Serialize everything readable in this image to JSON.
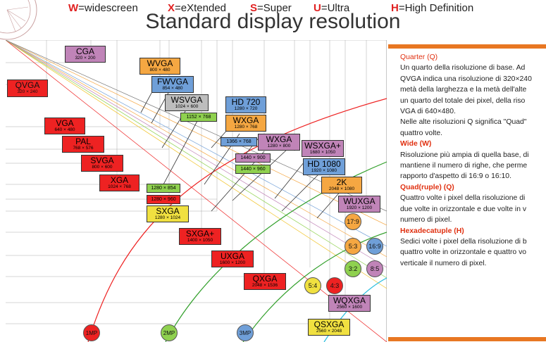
{
  "legend": [
    {
      "letter": "W",
      "text": "=widescreen",
      "color": "#e02020"
    },
    {
      "letter": "X",
      "text": "=eXtended",
      "color": "#e02020"
    },
    {
      "letter": "S",
      "text": "=Super",
      "color": "#e02020"
    },
    {
      "letter": "U",
      "text": "=Ultra",
      "color": "#e02020"
    },
    {
      "letter": "H",
      "text": "=High Definition",
      "color": "#e02020"
    }
  ],
  "title": "Standard display resolution",
  "resolutions": [
    {
      "name": "CGA",
      "res": "320 × 200",
      "color": "#c084b8"
    },
    {
      "name": "QVGA",
      "res": "320 × 240",
      "color": "#ee2222"
    },
    {
      "name": "WVGA",
      "res": "800 × 480",
      "color": "#f5a742"
    },
    {
      "name": "FWVGA",
      "res": "854 × 480",
      "color": "#6f9fd8"
    },
    {
      "name": "WSVGA",
      "res": "1024 × 600",
      "color": "#bdbdbd"
    },
    {
      "name": "1152 × 768",
      "res": "",
      "color": "#8fd14f"
    },
    {
      "name": "HD 720",
      "res": "1280 × 720",
      "color": "#6f9fd8"
    },
    {
      "name": "WXGA",
      "res": "1280 × 768",
      "color": "#f5a742"
    },
    {
      "name": "VGA",
      "res": "640 × 480",
      "color": "#ee2222"
    },
    {
      "name": "PAL",
      "res": "768 × 576",
      "color": "#ee2222"
    },
    {
      "name": "1366 × 768",
      "res": "",
      "color": "#6f9fd8"
    },
    {
      "name": "WXGA",
      "res": "1280 × 800",
      "color": "#c084b8"
    },
    {
      "name": "WSXGA+",
      "res": "1680 × 1050",
      "color": "#c084b8"
    },
    {
      "name": "1440 × 900",
      "res": "",
      "color": "#c084b8"
    },
    {
      "name": "SVGA",
      "res": "800 × 600",
      "color": "#ee2222"
    },
    {
      "name": "1440 × 960",
      "res": "",
      "color": "#8fd14f"
    },
    {
      "name": "HD 1080",
      "res": "1920 × 1080",
      "color": "#6f9fd8"
    },
    {
      "name": "XGA",
      "res": "1024 × 768",
      "color": "#ee2222"
    },
    {
      "name": "1280 × 854",
      "res": "",
      "color": "#8fd14f"
    },
    {
      "name": "2K",
      "res": "2048 × 1080",
      "color": "#f5a742"
    },
    {
      "name": "1280 × 960",
      "res": "",
      "color": "#ee2222"
    },
    {
      "name": "WUXGA",
      "res": "1920 × 1200",
      "color": "#c084b8"
    },
    {
      "name": "SXGA",
      "res": "1280 × 1024",
      "color": "#f0e040"
    },
    {
      "name": "SXGA+",
      "res": "1400 × 1050",
      "color": "#ee2222"
    },
    {
      "name": "UXGA",
      "res": "1600 × 1200",
      "color": "#ee2222"
    },
    {
      "name": "QXGA",
      "res": "2048 × 1536",
      "color": "#ee2222"
    },
    {
      "name": "WQXGA",
      "res": "2560 × 1600",
      "color": "#c084b8"
    },
    {
      "name": "QSXGA",
      "res": "2560 × 2048",
      "color": "#f0e040"
    }
  ],
  "aspect_ratios": [
    {
      "label": "17:9",
      "color": "#f5a742"
    },
    {
      "label": "5:3",
      "color": "#f5a742"
    },
    {
      "label": "16:9",
      "color": "#6f9fd8"
    },
    {
      "label": "3:2",
      "color": "#8fd14f"
    },
    {
      "label": "8:5",
      "color": "#c084b8"
    },
    {
      "label": "5:4",
      "color": "#f0e040"
    },
    {
      "label": "4:3",
      "color": "#ee2222"
    }
  ],
  "megapixels": [
    {
      "label": "1MP",
      "color": "#ee2222"
    },
    {
      "label": "2MP",
      "color": "#8fd14f"
    },
    {
      "label": "3MP",
      "color": "#6f9fd8"
    }
  ],
  "panel": {
    "quarter_title": "Quarter (Q)",
    "quarter_lines": [
      "Un quarto della risoluzione di base. Ad",
      "QVGA indica una risoluzione di 320×240",
      "metà della larghezza e la metà dell'alte",
      "un quarto del totale dei pixel, della riso",
      "VGA di 640×480.",
      "Nelle alte risoluzioni Q significa \"Quad\"",
      "quattro volte."
    ],
    "wide_title": "Wide (W)",
    "wide_lines": [
      "Risoluzione più ampia di quella base, di",
      "mantiene il numero di righe, che perme",
      "rapporto d'aspetto di 16:9 o 16:10."
    ],
    "quad_title": "Quad(ruple) (Q)",
    "quad_lines": [
      "Quattro volte i pixel della risoluzione di",
      "due volte in orizzontale e due volte in v",
      "numero di pixel."
    ],
    "hexa_title": "Hexadecatuple (H)",
    "hexa_lines": [
      "Sedici volte i pixel della risoluzione di b",
      "quattro volte in orizzontale e quattro vo",
      "verticale il numero di pixel."
    ]
  }
}
